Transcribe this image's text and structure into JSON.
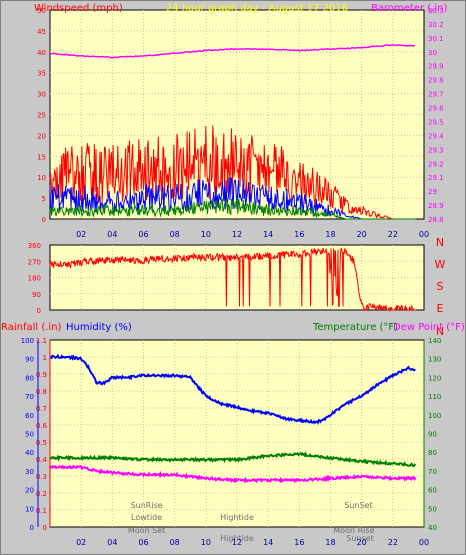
{
  "chart_data": [
    {
      "type": "line",
      "title": "24 hour graph day - August 17 2016",
      "left_axis_label": "Windspeed (mph)",
      "right_axis_label": "Barometer (.in)",
      "left_ylim": [
        0,
        50
      ],
      "left_ticks": [
        "0",
        "5",
        "10",
        "15",
        "20",
        "25",
        "30",
        "35",
        "40",
        "45",
        "50"
      ],
      "right_ylim": [
        28.8,
        30.3
      ],
      "right_ticks": [
        "28.8",
        "28.9",
        "29",
        "29.1",
        "29.2",
        "29.3",
        "29.4",
        "29.5",
        "29.6",
        "29.7",
        "29.8",
        "29.9",
        "30",
        "30.1",
        "30.2",
        "30.3"
      ],
      "x_ticks": [
        "02",
        "04",
        "06",
        "08",
        "10",
        "12",
        "14",
        "16",
        "18",
        "20",
        "22",
        "00"
      ],
      "grid": true,
      "series": [
        {
          "name": "Barometer",
          "axis": "right",
          "color": "#ff00ff",
          "x": [
            0,
            2,
            4,
            6,
            8,
            10,
            12,
            14,
            16,
            18,
            20,
            22,
            23.5
          ],
          "values": [
            29.99,
            29.97,
            29.96,
            29.97,
            29.99,
            30.01,
            30.02,
            30.02,
            30.01,
            30.02,
            30.03,
            30.05,
            30.04
          ]
        },
        {
          "name": "Wind gust",
          "axis": "left",
          "color": "#ff0000",
          "x": [
            0,
            2,
            4,
            6,
            8,
            10,
            12,
            14,
            16,
            18,
            19,
            20,
            21,
            22,
            23.5
          ],
          "values": [
            10,
            11,
            11,
            12,
            13,
            14,
            13,
            12,
            9,
            6,
            3,
            2,
            1,
            0,
            0
          ]
        },
        {
          "name": "Wind speed",
          "axis": "left",
          "color": "#0000ff",
          "x": [
            0,
            2,
            4,
            6,
            8,
            10,
            12,
            14,
            16,
            18,
            19,
            20,
            21,
            23.5
          ],
          "values": [
            5,
            5,
            4,
            5,
            5,
            6,
            6,
            5,
            4,
            2,
            1,
            0,
            0,
            0
          ]
        },
        {
          "name": "Wind average",
          "axis": "left",
          "color": "#008000",
          "x": [
            0,
            2,
            4,
            6,
            8,
            10,
            12,
            14,
            16,
            18,
            19,
            20,
            23.5
          ],
          "values": [
            2,
            2,
            2,
            2,
            2,
            3,
            3,
            2,
            2,
            1,
            0,
            0,
            0
          ]
        }
      ]
    },
    {
      "type": "line",
      "ylim": [
        0,
        360
      ],
      "left_ticks": [
        "0",
        "90",
        "180",
        "270",
        "360"
      ],
      "compass_labels": [
        "N",
        "W",
        "S",
        "E",
        "N"
      ],
      "grid": true,
      "series": [
        {
          "name": "Wind direction",
          "color": "#ff0000",
          "x": [
            0,
            1,
            2,
            4,
            6,
            8,
            10,
            12,
            14,
            16,
            18,
            19,
            19.5,
            20,
            22,
            23.5
          ],
          "values": [
            260,
            245,
            265,
            280,
            275,
            285,
            295,
            290,
            300,
            310,
            330,
            320,
            270,
            20,
            5,
            5
          ]
        }
      ]
    },
    {
      "type": "line",
      "rain_label": "Rainfall (.in)",
      "humidity_label": "Humidity (%)",
      "temperature_label": "Temperature (°F)",
      "dewpoint_label": "Dew Point (°F)",
      "humidity_ylim": [
        0,
        100
      ],
      "humidity_ticks": [
        "0",
        "10",
        "20",
        "30",
        "40",
        "50",
        "60",
        "70",
        "80",
        "90",
        "100"
      ],
      "rain_ylim": [
        0,
        1.1
      ],
      "rain_ticks": [
        "0",
        "0.1",
        "0.2",
        "0.3",
        "0.4",
        "0.5",
        "0.6",
        "0.7",
        "0.8",
        "0.9",
        "1",
        "1.1"
      ],
      "temp_ylim": [
        40,
        140
      ],
      "temp_ticks": [
        "40",
        "50",
        "60",
        "70",
        "80",
        "90",
        "100",
        "110",
        "120",
        "130",
        "140"
      ],
      "x_ticks": [
        "02",
        "04",
        "06",
        "08",
        "10",
        "12",
        "14",
        "16",
        "18",
        "20",
        "22",
        "00"
      ],
      "grid": true,
      "series": [
        {
          "name": "Humidity",
          "axis": "humidity",
          "color": "#0000ff",
          "x": [
            0,
            1,
            2,
            2.5,
            3,
            3.5,
            4,
            5,
            6,
            7,
            8,
            9,
            9.5,
            10,
            11,
            12,
            13,
            14,
            15,
            16,
            17,
            17.5,
            18,
            19,
            20,
            21,
            22,
            23,
            23.5
          ],
          "values": [
            91,
            91,
            90,
            85,
            77,
            77,
            80,
            80,
            81,
            81,
            81,
            80,
            75,
            70,
            66,
            64,
            62,
            61,
            58,
            57,
            56,
            57,
            60,
            66,
            70,
            76,
            81,
            85,
            84
          ]
        },
        {
          "name": "Temperature",
          "axis": "temp",
          "color": "#008000",
          "x": [
            0,
            2,
            4,
            6,
            8,
            10,
            12,
            14,
            16,
            18,
            20,
            22,
            23.5
          ],
          "values": [
            77,
            77,
            77,
            76,
            76,
            76,
            76,
            78,
            79,
            77,
            75,
            74,
            73
          ]
        },
        {
          "name": "Dew Point",
          "axis": "temp",
          "color": "#ff00ff",
          "x": [
            0,
            2,
            3,
            4,
            6,
            8,
            10,
            12,
            14,
            16,
            18,
            20,
            22,
            23.5
          ],
          "values": [
            72,
            72,
            70,
            69,
            68,
            68,
            66,
            65,
            65,
            65,
            66,
            67,
            66,
            66
          ]
        }
      ],
      "annotations": [
        {
          "text": "SunRise",
          "x": 6.2,
          "row": 0
        },
        {
          "text": "Lowtide",
          "x": 6.2,
          "row": 1
        },
        {
          "text": "Moon Set",
          "x": 6.2,
          "row": 2
        },
        {
          "text": "Hightide",
          "x": 12.0,
          "row": 1
        },
        {
          "text": "Hightide",
          "x": 12.0,
          "row": 3
        },
        {
          "text": "SunSet",
          "x": 19.8,
          "row": 0
        },
        {
          "text": "Moon Rise",
          "x": 19.5,
          "row": 2
        },
        {
          "text": "Sunset",
          "x": 19.9,
          "row": 3
        }
      ]
    }
  ]
}
